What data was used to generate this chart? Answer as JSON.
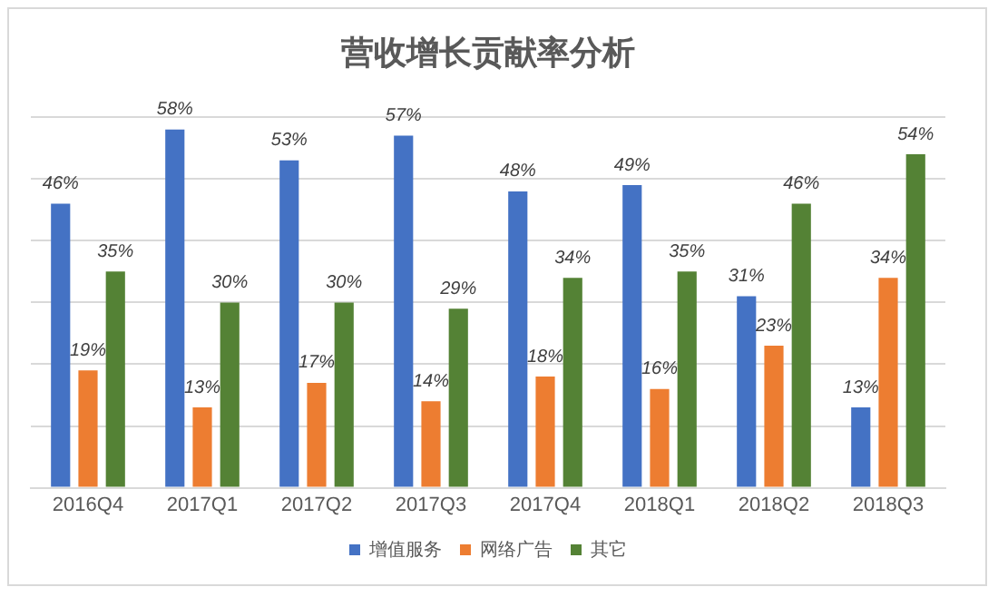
{
  "chart_data": {
    "type": "bar",
    "title": "营收增长贡献率分析",
    "categories": [
      "2016Q4",
      "2017Q1",
      "2017Q2",
      "2017Q3",
      "2017Q4",
      "2018Q1",
      "2018Q2",
      "2018Q3"
    ],
    "series": [
      {
        "name": "增值服务",
        "color": "#4472c4",
        "values": [
          46,
          58,
          53,
          57,
          48,
          49,
          31,
          13
        ],
        "value_labels": [
          "46%",
          "58%",
          "53%",
          "57%",
          "48%",
          "49%",
          "31%",
          "13%"
        ]
      },
      {
        "name": "网络广告",
        "color": "#ed7d31",
        "values": [
          19,
          13,
          17,
          14,
          18,
          16,
          23,
          34
        ],
        "value_labels": [
          "19%",
          "13%",
          "17%",
          "14%",
          "18%",
          "16%",
          "23%",
          "34%"
        ]
      },
      {
        "name": "其它",
        "color": "#548235",
        "values": [
          35,
          30,
          30,
          29,
          34,
          35,
          46,
          54
        ],
        "value_labels": [
          "35%",
          "30%",
          "30%",
          "29%",
          "34%",
          "35%",
          "46%",
          "54%"
        ]
      }
    ],
    "ylim": [
      0,
      60
    ],
    "yticks": [
      {
        "value": 0,
        "label": null
      },
      {
        "value": 10,
        "label": null
      },
      {
        "value": 20,
        "label": null
      },
      {
        "value": 30,
        "label": null
      },
      {
        "value": 40,
        "label": null
      },
      {
        "value": 50,
        "label": null
      },
      {
        "value": 60,
        "label": null
      }
    ],
    "grid": "y",
    "tick_labels": "x",
    "legend": "bottom"
  }
}
